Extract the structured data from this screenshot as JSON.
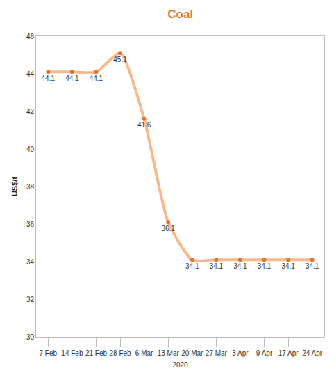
{
  "chart_data": {
    "type": "line",
    "title": "Coal",
    "x_label": "2020",
    "y_label": "US$/t",
    "categories": [
      "7 Feb",
      "14 Feb",
      "21 Feb",
      "28 Feb",
      "6 Mar",
      "13 Mar",
      "20 Mar",
      "27 Mar",
      "3 Apr",
      "9 Apr",
      "17 Apr",
      "24 Apr"
    ],
    "values": [
      44.1,
      44.1,
      44.1,
      45.1,
      41.6,
      36.1,
      34.1,
      34.1,
      34.1,
      34.1,
      34.1,
      34.1
    ],
    "color": "#f7b98b",
    "marker": "circle",
    "line_style": "solid",
    "ylim": [
      30,
      46
    ],
    "yticks": [
      30,
      32,
      34,
      36,
      38,
      40,
      42,
      44,
      46
    ],
    "grid": false,
    "data_labels": true
  }
}
